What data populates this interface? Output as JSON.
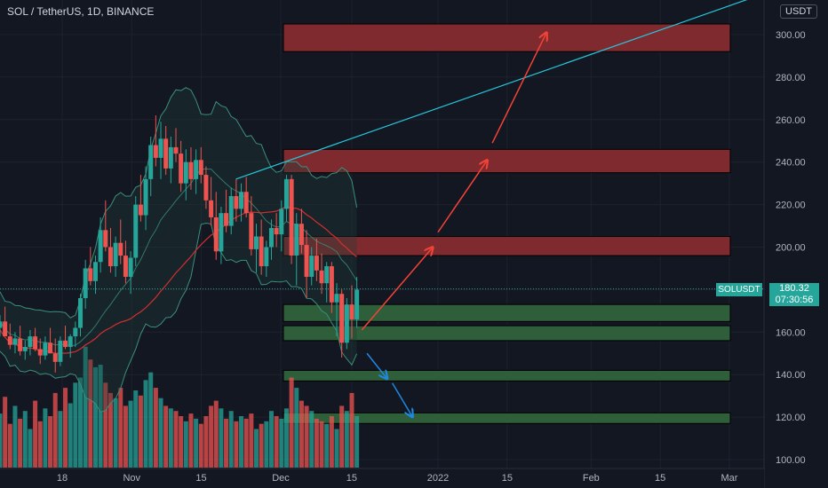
{
  "header": {
    "title": "SOL / TetherUS, 1D, BINANCE",
    "currency": "USDT"
  },
  "last_price": {
    "ticker": "SOLUSDT",
    "value": "180.32",
    "countdown": "07:30:56"
  },
  "colors": {
    "background": "#131722",
    "bull": "#26a69a",
    "bear": "#ef5350",
    "resistance_zone": "#7e2a2f",
    "support_zone": "#2e5e3a",
    "trendline": "#26c6da",
    "arrow_up": "#f44336",
    "arrow_down": "#1e88e5",
    "bollinger": "#3b8f7a",
    "moving_average": "#d32f2f"
  },
  "chart_data": {
    "type": "candlestick",
    "symbol": "SOLUSDT",
    "interval": "1D",
    "exchange": "BINANCE",
    "y_axis": {
      "ticks": [
        "300.00",
        "280.00",
        "260.00",
        "240.00",
        "220.00",
        "200.00",
        "180.00",
        "160.00",
        "140.00",
        "120.00",
        "100.00"
      ],
      "range": [
        98,
        318
      ],
      "side": "right"
    },
    "x_axis": {
      "ticks": [
        "18",
        "Nov",
        "15",
        "Dec",
        "15",
        "2022",
        "15",
        "Feb",
        "15",
        "Mar"
      ],
      "tick_dates": [
        "2021-10-18",
        "2021-11-01",
        "2021-11-15",
        "2021-12-01",
        "2021-12-15",
        "2022-01-01",
        "2022-01-15",
        "2022-02-01",
        "2022-02-15",
        "2022-03-01"
      ]
    },
    "last_price": 180.32,
    "candles_ohlc": [
      [
        162,
        168,
        158,
        165
      ],
      [
        165,
        172,
        160,
        158
      ],
      [
        158,
        164,
        152,
        154
      ],
      [
        154,
        160,
        150,
        157
      ],
      [
        157,
        163,
        149,
        151
      ],
      [
        151,
        156,
        147,
        153
      ],
      [
        153,
        161,
        149,
        158
      ],
      [
        158,
        162,
        151,
        152
      ],
      [
        152,
        157,
        145,
        149
      ],
      [
        149,
        158,
        147,
        155
      ],
      [
        155,
        162,
        150,
        150
      ],
      [
        150,
        157,
        141,
        146
      ],
      [
        146,
        158,
        144,
        156
      ],
      [
        156,
        163,
        152,
        153
      ],
      [
        153,
        159,
        148,
        158
      ],
      [
        158,
        165,
        153,
        162
      ],
      [
        162,
        178,
        158,
        176
      ],
      [
        176,
        194,
        171,
        190
      ],
      [
        190,
        200,
        182,
        184
      ],
      [
        184,
        196,
        178,
        193
      ],
      [
        193,
        214,
        188,
        208
      ],
      [
        208,
        222,
        198,
        200
      ],
      [
        200,
        209,
        188,
        191
      ],
      [
        191,
        205,
        186,
        202
      ],
      [
        202,
        213,
        192,
        196
      ],
      [
        196,
        203,
        183,
        186
      ],
      [
        186,
        198,
        178,
        195
      ],
      [
        195,
        224,
        191,
        220
      ],
      [
        220,
        234,
        212,
        215
      ],
      [
        215,
        238,
        208,
        232
      ],
      [
        232,
        252,
        224,
        248
      ],
      [
        248,
        262,
        238,
        242
      ],
      [
        242,
        259,
        232,
        251
      ],
      [
        251,
        257,
        234,
        237
      ],
      [
        237,
        252,
        230,
        247
      ],
      [
        247,
        256,
        240,
        244
      ],
      [
        244,
        250,
        226,
        230
      ],
      [
        230,
        246,
        222,
        240
      ],
      [
        240,
        247,
        227,
        232
      ],
      [
        232,
        246,
        225,
        241
      ],
      [
        241,
        247,
        230,
        234
      ],
      [
        234,
        238,
        218,
        222
      ],
      [
        222,
        233,
        210,
        214
      ],
      [
        214,
        226,
        194,
        198
      ],
      [
        198,
        219,
        192,
        216
      ],
      [
        216,
        227,
        207,
        210
      ],
      [
        210,
        228,
        206,
        224
      ],
      [
        224,
        232,
        212,
        218
      ],
      [
        218,
        230,
        212,
        226
      ],
      [
        226,
        233,
        214,
        216
      ],
      [
        216,
        224,
        196,
        199
      ],
      [
        199,
        211,
        188,
        205
      ],
      [
        205,
        213,
        187,
        191
      ],
      [
        191,
        203,
        186,
        200
      ],
      [
        200,
        213,
        194,
        209
      ],
      [
        209,
        216,
        200,
        206
      ],
      [
        206,
        222,
        198,
        218
      ],
      [
        218,
        234,
        212,
        232
      ],
      [
        232,
        234,
        192,
        196
      ],
      [
        196,
        216,
        182,
        211
      ],
      [
        211,
        218,
        197,
        201
      ],
      [
        201,
        208,
        176,
        186
      ],
      [
        186,
        200,
        182,
        196
      ],
      [
        196,
        204,
        184,
        189
      ],
      [
        189,
        197,
        178,
        183
      ],
      [
        183,
        193,
        174,
        191
      ],
      [
        191,
        193,
        169,
        174
      ],
      [
        174,
        183,
        158,
        178
      ],
      [
        178,
        180,
        148,
        155
      ],
      [
        155,
        176,
        152,
        173
      ],
      [
        173,
        182,
        157,
        166
      ],
      [
        166,
        186,
        162,
        180
      ]
    ],
    "volume": [
      42,
      55,
      34,
      48,
      38,
      44,
      30,
      52,
      36,
      46,
      40,
      58,
      44,
      62,
      50,
      66,
      70,
      94,
      84,
      78,
      80,
      66,
      58,
      54,
      62,
      48,
      52,
      60,
      56,
      68,
      74,
      62,
      54,
      48,
      46,
      44,
      40,
      36,
      42,
      38,
      34,
      40,
      48,
      52,
      46,
      38,
      44,
      36,
      40,
      38,
      42,
      30,
      34,
      36,
      44,
      40,
      38,
      46,
      70,
      62,
      52,
      48,
      44,
      38,
      36,
      34,
      40,
      30,
      48,
      44,
      58,
      40
    ],
    "resistance_zones": [
      [
        292,
        305
      ],
      [
        235,
        246
      ],
      [
        196,
        205
      ]
    ],
    "support_zones": [
      [
        165,
        173
      ],
      [
        156,
        163
      ],
      [
        137,
        142
      ],
      [
        117,
        122
      ]
    ],
    "annotations": [
      {
        "type": "trendline",
        "from": [
          "2021-11-22",
          232
        ],
        "to": [
          "2022-03-15",
          325
        ]
      },
      {
        "type": "arrow",
        "direction": "up",
        "points": [
          [
            "2021-12-17",
            161
          ],
          [
            "2021-12-31",
            200
          ]
        ]
      },
      {
        "type": "arrow",
        "direction": "up",
        "points": [
          [
            "2022-01-01",
            207
          ],
          [
            "2022-01-11",
            241
          ]
        ]
      },
      {
        "type": "arrow",
        "direction": "up",
        "points": [
          [
            "2022-01-12",
            249
          ],
          [
            "2022-01-23",
            301
          ]
        ]
      },
      {
        "type": "arrow",
        "direction": "down",
        "points": [
          [
            "2021-12-18",
            150
          ],
          [
            "2021-12-22",
            138
          ]
        ]
      },
      {
        "type": "arrow",
        "direction": "down",
        "points": [
          [
            "2021-12-23",
            136
          ],
          [
            "2021-12-27",
            120
          ]
        ]
      }
    ]
  }
}
